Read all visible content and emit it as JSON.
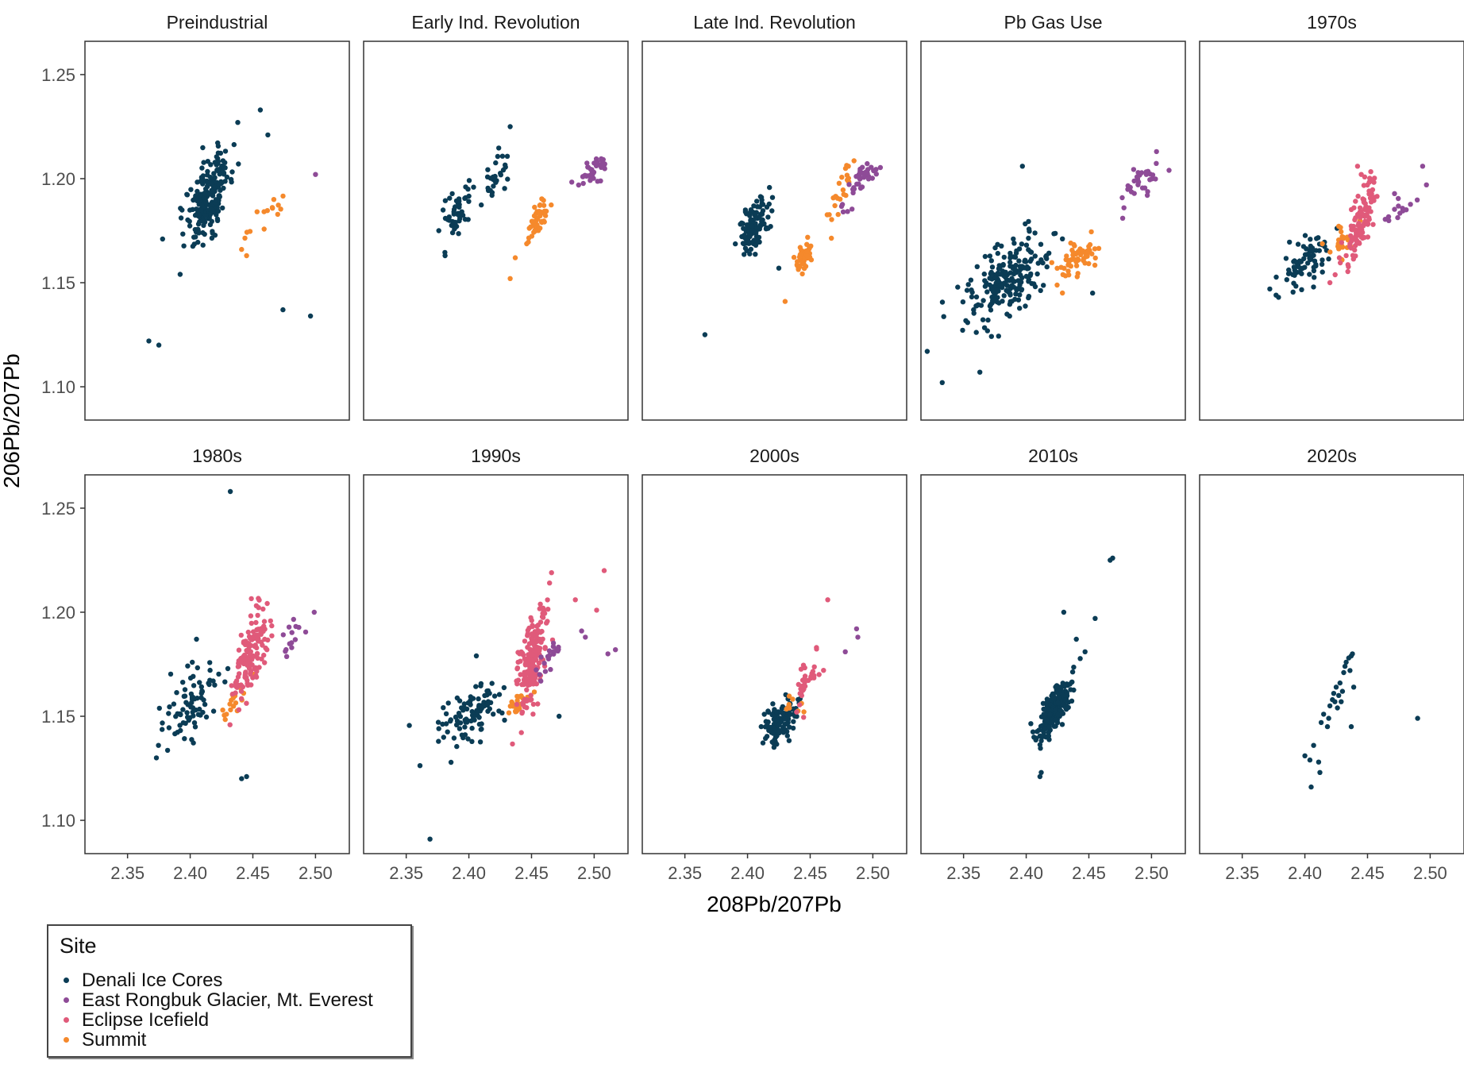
{
  "chart_data": {
    "type": "scatter",
    "xlabel": "208Pb/207Pb",
    "ylabel": "206Pb/207Pb",
    "xlim": [
      2.316,
      2.527
    ],
    "ylim": [
      1.084,
      1.266
    ],
    "x_ticks": [
      2.35,
      2.4,
      2.45,
      2.5
    ],
    "x_tick_labels": [
      "2.35",
      "2.40",
      "2.45",
      "2.50"
    ],
    "y_ticks": [
      1.1,
      1.15,
      1.2,
      1.25
    ],
    "y_tick_labels": [
      "1.10",
      "1.15",
      "1.20",
      "1.25"
    ],
    "grid": false,
    "legend": {
      "title": "Site",
      "position": "bottom-left",
      "entries": [
        {
          "name": "Denali Ice Cores",
          "color": "#0b3c55"
        },
        {
          "name": "East Rongbuk Glacier, Mt. Everest",
          "color": "#8e4b97"
        },
        {
          "name": "Eclipse Icefield",
          "color": "#e05a7a"
        },
        {
          "name": "Summit",
          "color": "#f5892c"
        }
      ]
    },
    "panels": [
      {
        "title": "Preindustrial",
        "clusters": [
          {
            "site": "Denali Ice Cores",
            "cx": 2.415,
            "cy": 1.192,
            "sx": 0.009,
            "sy": 0.011,
            "n": 220,
            "rho": 0.6
          },
          {
            "site": "Summit",
            "cx": 2.462,
            "cy": 1.183,
            "sx": 0.008,
            "sy": 0.005,
            "n": 14,
            "rho": 0.7
          }
        ],
        "points": [
          {
            "site": "Denali Ice Cores",
            "x": 2.367,
            "y": 1.122
          },
          {
            "site": "Denali Ice Cores",
            "x": 2.375,
            "y": 1.12
          },
          {
            "site": "Denali Ice Cores",
            "x": 2.474,
            "y": 1.137
          },
          {
            "site": "Denali Ice Cores",
            "x": 2.496,
            "y": 1.134
          },
          {
            "site": "Denali Ice Cores",
            "x": 2.456,
            "y": 1.233
          },
          {
            "site": "Denali Ice Cores",
            "x": 2.462,
            "y": 1.221
          },
          {
            "site": "Denali Ice Cores",
            "x": 2.438,
            "y": 1.227
          },
          {
            "site": "Denali Ice Cores",
            "x": 2.392,
            "y": 1.154
          },
          {
            "site": "Denali Ice Cores",
            "x": 2.378,
            "y": 1.171
          },
          {
            "site": "Summit",
            "x": 2.441,
            "y": 1.166
          },
          {
            "site": "Summit",
            "x": 2.445,
            "y": 1.163
          },
          {
            "site": "East Rongbuk Glacier, Mt. Everest",
            "x": 2.5,
            "y": 1.202
          }
        ]
      },
      {
        "title": "Early Ind. Revolution",
        "clusters": [
          {
            "site": "Denali Ice Cores",
            "cx": 2.39,
            "cy": 1.182,
            "sx": 0.007,
            "sy": 0.007,
            "n": 45,
            "rho": 0.6
          },
          {
            "site": "Denali Ice Cores",
            "cx": 2.417,
            "cy": 1.196,
            "sx": 0.006,
            "sy": 0.007,
            "n": 30,
            "rho": 0.6
          },
          {
            "site": "Summit",
            "cx": 2.456,
            "cy": 1.181,
            "sx": 0.004,
            "sy": 0.005,
            "n": 45,
            "rho": 0.6
          },
          {
            "site": "East Rongbuk Glacier, Mt. Everest",
            "cx": 2.497,
            "cy": 1.203,
            "sx": 0.006,
            "sy": 0.004,
            "n": 38,
            "rho": 0.5
          }
        ],
        "points": [
          {
            "site": "Denali Ice Cores",
            "x": 2.433,
            "y": 1.225
          },
          {
            "site": "Denali Ice Cores",
            "x": 2.376,
            "y": 1.175
          },
          {
            "site": "Denali Ice Cores",
            "x": 2.381,
            "y": 1.163
          },
          {
            "site": "Summit",
            "x": 2.437,
            "y": 1.162
          },
          {
            "site": "Summit",
            "x": 2.433,
            "y": 1.152
          }
        ]
      },
      {
        "title": "Late Ind. Revolution",
        "clusters": [
          {
            "site": "Denali Ice Cores",
            "cx": 2.405,
            "cy": 1.177,
            "sx": 0.006,
            "sy": 0.007,
            "n": 110,
            "rho": 0.5
          },
          {
            "site": "Summit",
            "cx": 2.445,
            "cy": 1.162,
            "sx": 0.004,
            "sy": 0.004,
            "n": 55,
            "rho": 0.6
          },
          {
            "site": "Summit",
            "cx": 2.475,
            "cy": 1.195,
            "sx": 0.005,
            "sy": 0.008,
            "n": 25,
            "rho": 0.7
          },
          {
            "site": "East Rongbuk Glacier, Mt. Everest",
            "cx": 2.49,
            "cy": 1.198,
            "sx": 0.007,
            "sy": 0.006,
            "n": 40,
            "rho": 0.8
          }
        ],
        "points": [
          {
            "site": "Denali Ice Cores",
            "x": 2.366,
            "y": 1.125
          },
          {
            "site": "Denali Ice Cores",
            "x": 2.425,
            "y": 1.157
          },
          {
            "site": "Summit",
            "x": 2.43,
            "y": 1.141
          }
        ]
      },
      {
        "title": "Pb Gas Use",
        "clusters": [
          {
            "site": "Denali Ice Cores",
            "cx": 2.385,
            "cy": 1.152,
            "sx": 0.018,
            "sy": 0.011,
            "n": 210,
            "rho": 0.6
          },
          {
            "site": "Summit",
            "cx": 2.443,
            "cy": 1.164,
            "sx": 0.007,
            "sy": 0.005,
            "n": 60,
            "rho": 0.5
          },
          {
            "site": "East Rongbuk Glacier, Mt. Everest",
            "cx": 2.494,
            "cy": 1.2,
            "sx": 0.006,
            "sy": 0.004,
            "n": 28,
            "rho": 0.5
          }
        ],
        "points": [
          {
            "site": "Denali Ice Cores",
            "x": 2.321,
            "y": 1.117
          },
          {
            "site": "Denali Ice Cores",
            "x": 2.333,
            "y": 1.102
          },
          {
            "site": "Denali Ice Cores",
            "x": 2.363,
            "y": 1.107
          },
          {
            "site": "Denali Ice Cores",
            "x": 2.397,
            "y": 1.206
          },
          {
            "site": "Denali Ice Cores",
            "x": 2.453,
            "y": 1.145
          },
          {
            "site": "East Rongbuk Glacier, Mt. Everest",
            "x": 2.477,
            "y": 1.181
          },
          {
            "site": "East Rongbuk Glacier, Mt. Everest",
            "x": 2.478,
            "y": 1.186
          },
          {
            "site": "East Rongbuk Glacier, Mt. Everest",
            "x": 2.504,
            "y": 1.213
          },
          {
            "site": "East Rongbuk Glacier, Mt. Everest",
            "x": 2.514,
            "y": 1.204
          }
        ]
      },
      {
        "title": "1970s",
        "clusters": [
          {
            "site": "Denali Ice Cores",
            "cx": 2.402,
            "cy": 1.16,
            "sx": 0.01,
            "sy": 0.006,
            "n": 75,
            "rho": 0.6
          },
          {
            "site": "Summit",
            "cx": 2.43,
            "cy": 1.17,
            "sx": 0.006,
            "sy": 0.005,
            "n": 30,
            "rho": 0.5
          },
          {
            "site": "Eclipse Icefield",
            "cx": 2.445,
            "cy": 1.18,
            "sx": 0.007,
            "sy": 0.011,
            "n": 110,
            "rho": 0.7
          },
          {
            "site": "East Rongbuk Glacier, Mt. Everest",
            "cx": 2.477,
            "cy": 1.186,
            "sx": 0.008,
            "sy": 0.004,
            "n": 14,
            "rho": 0.6
          }
        ],
        "points": [
          {
            "site": "Eclipse Icefield",
            "x": 2.442,
            "y": 1.206
          },
          {
            "site": "Eclipse Icefield",
            "x": 2.445,
            "y": 1.202
          },
          {
            "site": "Eclipse Icefield",
            "x": 2.42,
            "y": 1.15
          },
          {
            "site": "East Rongbuk Glacier, Mt. Everest",
            "x": 2.494,
            "y": 1.206
          },
          {
            "site": "East Rongbuk Glacier, Mt. Everest",
            "x": 2.497,
            "y": 1.197
          },
          {
            "site": "Denali Ice Cores",
            "x": 2.379,
            "y": 1.143
          },
          {
            "site": "Denali Ice Cores",
            "x": 2.372,
            "y": 1.147
          },
          {
            "site": "Denali Ice Cores",
            "x": 2.377,
            "y": 1.144
          }
        ]
      },
      {
        "title": "1980s",
        "clusters": [
          {
            "site": "Denali Ice Cores",
            "cx": 2.398,
            "cy": 1.154,
            "sx": 0.012,
            "sy": 0.01,
            "n": 80,
            "rho": 0.6
          },
          {
            "site": "Summit",
            "cx": 2.436,
            "cy": 1.158,
            "sx": 0.005,
            "sy": 0.004,
            "n": 15,
            "rho": 0.4
          },
          {
            "site": "Eclipse Icefield",
            "cx": 2.448,
            "cy": 1.18,
            "sx": 0.006,
            "sy": 0.011,
            "n": 140,
            "rho": 0.6
          },
          {
            "site": "East Rongbuk Glacier, Mt. Everest",
            "cx": 2.483,
            "cy": 1.188,
            "sx": 0.008,
            "sy": 0.005,
            "n": 14,
            "rho": 0.7
          }
        ],
        "points": [
          {
            "site": "Denali Ice Cores",
            "x": 2.432,
            "y": 1.258
          },
          {
            "site": "Denali Ice Cores",
            "x": 2.441,
            "y": 1.12
          },
          {
            "site": "Denali Ice Cores",
            "x": 2.445,
            "y": 1.121
          },
          {
            "site": "Denali Ice Cores",
            "x": 2.373,
            "y": 1.13
          },
          {
            "site": "Denali Ice Cores",
            "x": 2.405,
            "y": 1.187
          },
          {
            "site": "Summit",
            "x": 2.426,
            "y": 1.153
          },
          {
            "site": "Summit",
            "x": 2.429,
            "y": 1.151
          },
          {
            "site": "East Rongbuk Glacier, Mt. Everest",
            "x": 2.499,
            "y": 1.2
          }
        ]
      },
      {
        "title": "1990s",
        "clusters": [
          {
            "site": "Denali Ice Cores",
            "cx": 2.4,
            "cy": 1.15,
            "sx": 0.014,
            "sy": 0.008,
            "n": 100,
            "rho": 0.5
          },
          {
            "site": "Summit",
            "cx": 2.438,
            "cy": 1.156,
            "sx": 0.006,
            "sy": 0.004,
            "n": 25,
            "rho": 0.5
          },
          {
            "site": "Eclipse Icefield",
            "cx": 2.45,
            "cy": 1.177,
            "sx": 0.006,
            "sy": 0.012,
            "n": 190,
            "rho": 0.6
          },
          {
            "site": "East Rongbuk Glacier, Mt. Everest",
            "cx": 2.465,
            "cy": 1.18,
            "sx": 0.006,
            "sy": 0.005,
            "n": 22,
            "rho": 0.6
          }
        ],
        "points": [
          {
            "site": "Denali Ice Cores",
            "x": 2.369,
            "y": 1.091
          },
          {
            "site": "Denali Ice Cores",
            "x": 2.472,
            "y": 1.15
          },
          {
            "site": "Denali Ice Cores",
            "x": 2.406,
            "y": 1.179
          },
          {
            "site": "Eclipse Icefield",
            "x": 2.466,
            "y": 1.219
          },
          {
            "site": "Eclipse Icefield",
            "x": 2.508,
            "y": 1.22
          },
          {
            "site": "Eclipse Icefield",
            "x": 2.485,
            "y": 1.206
          },
          {
            "site": "Eclipse Icefield",
            "x": 2.502,
            "y": 1.201
          },
          {
            "site": "East Rongbuk Glacier, Mt. Everest",
            "x": 2.517,
            "y": 1.182
          },
          {
            "site": "East Rongbuk Glacier, Mt. Everest",
            "x": 2.511,
            "y": 1.18
          },
          {
            "site": "East Rongbuk Glacier, Mt. Everest",
            "x": 2.49,
            "y": 1.191
          },
          {
            "site": "East Rongbuk Glacier, Mt. Everest",
            "x": 2.493,
            "y": 1.188
          }
        ]
      },
      {
        "title": "2000s",
        "clusters": [
          {
            "site": "Denali Ice Cores",
            "cx": 2.425,
            "cy": 1.147,
            "sx": 0.007,
            "sy": 0.005,
            "n": 120,
            "rho": 0.5
          },
          {
            "site": "Summit",
            "cx": 2.438,
            "cy": 1.155,
            "sx": 0.004,
            "sy": 0.003,
            "n": 10,
            "rho": 0.4
          },
          {
            "site": "Eclipse Icefield",
            "cx": 2.448,
            "cy": 1.168,
            "sx": 0.005,
            "sy": 0.007,
            "n": 35,
            "rho": 0.6
          }
        ],
        "points": [
          {
            "site": "Eclipse Icefield",
            "x": 2.464,
            "y": 1.206
          },
          {
            "site": "Eclipse Icefield",
            "x": 2.455,
            "y": 1.183
          },
          {
            "site": "East Rongbuk Glacier, Mt. Everest",
            "x": 2.478,
            "y": 1.181
          },
          {
            "site": "East Rongbuk Glacier, Mt. Everest",
            "x": 2.487,
            "y": 1.192
          },
          {
            "site": "East Rongbuk Glacier, Mt. Everest",
            "x": 2.488,
            "y": 1.188
          }
        ]
      },
      {
        "title": "2010s",
        "clusters": [
          {
            "site": "Denali Ice Cores",
            "cx": 2.423,
            "cy": 1.153,
            "sx": 0.007,
            "sy": 0.007,
            "n": 230,
            "rho": 0.8
          }
        ],
        "points": [
          {
            "site": "Denali Ice Cores",
            "x": 2.469,
            "y": 1.226
          },
          {
            "site": "Denali Ice Cores",
            "x": 2.467,
            "y": 1.225
          },
          {
            "site": "Denali Ice Cores",
            "x": 2.43,
            "y": 1.2
          },
          {
            "site": "Denali Ice Cores",
            "x": 2.455,
            "y": 1.197
          },
          {
            "site": "Denali Ice Cores",
            "x": 2.411,
            "y": 1.121
          },
          {
            "site": "Denali Ice Cores",
            "x": 2.412,
            "y": 1.123
          },
          {
            "site": "Denali Ice Cores",
            "x": 2.44,
            "y": 1.187
          },
          {
            "site": "Denali Ice Cores",
            "x": 2.447,
            "y": 1.181
          }
        ]
      },
      {
        "title": "2020s",
        "clusters": [],
        "points": [
          {
            "site": "Denali Ice Cores",
            "x": 2.4,
            "y": 1.131
          },
          {
            "site": "Denali Ice Cores",
            "x": 2.404,
            "y": 1.129
          },
          {
            "site": "Denali Ice Cores",
            "x": 2.405,
            "y": 1.116
          },
          {
            "site": "Denali Ice Cores",
            "x": 2.407,
            "y": 1.136
          },
          {
            "site": "Denali Ice Cores",
            "x": 2.412,
            "y": 1.123
          },
          {
            "site": "Denali Ice Cores",
            "x": 2.411,
            "y": 1.128
          },
          {
            "site": "Denali Ice Cores",
            "x": 2.413,
            "y": 1.147
          },
          {
            "site": "Denali Ice Cores",
            "x": 2.415,
            "y": 1.151
          },
          {
            "site": "Denali Ice Cores",
            "x": 2.418,
            "y": 1.145
          },
          {
            "site": "Denali Ice Cores",
            "x": 2.419,
            "y": 1.149
          },
          {
            "site": "Denali Ice Cores",
            "x": 2.42,
            "y": 1.155
          },
          {
            "site": "Denali Ice Cores",
            "x": 2.422,
            "y": 1.158
          },
          {
            "site": "Denali Ice Cores",
            "x": 2.423,
            "y": 1.161
          },
          {
            "site": "Denali Ice Cores",
            "x": 2.424,
            "y": 1.157
          },
          {
            "site": "Denali Ice Cores",
            "x": 2.425,
            "y": 1.164
          },
          {
            "site": "Denali Ice Cores",
            "x": 2.426,
            "y": 1.154
          },
          {
            "site": "Denali Ice Cores",
            "x": 2.427,
            "y": 1.16
          },
          {
            "site": "Denali Ice Cores",
            "x": 2.428,
            "y": 1.166
          },
          {
            "site": "Denali Ice Cores",
            "x": 2.429,
            "y": 1.157
          },
          {
            "site": "Denali Ice Cores",
            "x": 2.43,
            "y": 1.162
          },
          {
            "site": "Denali Ice Cores",
            "x": 2.431,
            "y": 1.171
          },
          {
            "site": "Denali Ice Cores",
            "x": 2.432,
            "y": 1.174
          },
          {
            "site": "Denali Ice Cores",
            "x": 2.433,
            "y": 1.176
          },
          {
            "site": "Denali Ice Cores",
            "x": 2.435,
            "y": 1.178
          },
          {
            "site": "Denali Ice Cores",
            "x": 2.436,
            "y": 1.172
          },
          {
            "site": "Denali Ice Cores",
            "x": 2.437,
            "y": 1.179
          },
          {
            "site": "Denali Ice Cores",
            "x": 2.438,
            "y": 1.18
          },
          {
            "site": "Denali Ice Cores",
            "x": 2.439,
            "y": 1.164
          },
          {
            "site": "Denali Ice Cores",
            "x": 2.437,
            "y": 1.145
          },
          {
            "site": "Denali Ice Cores",
            "x": 2.49,
            "y": 1.149
          }
        ]
      }
    ]
  }
}
